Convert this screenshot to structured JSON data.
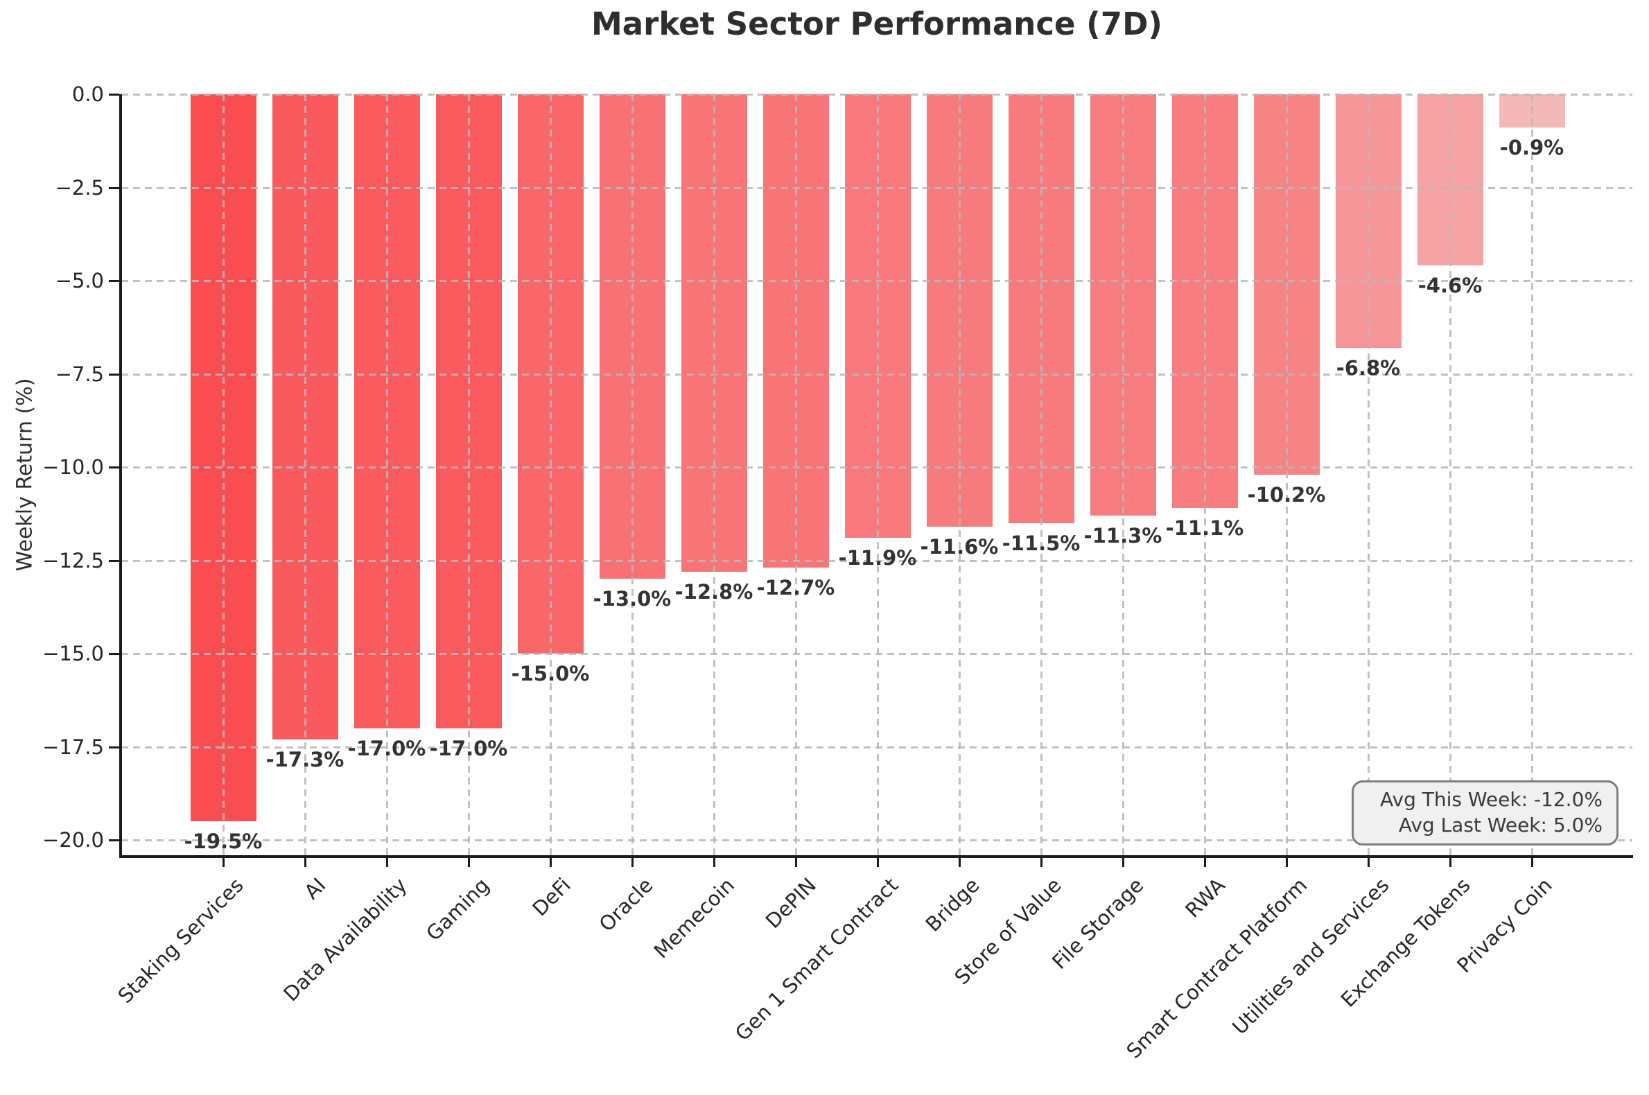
{
  "chart_data": {
    "type": "bar",
    "title": "Market Sector Performance (7D)",
    "xlabel": "",
    "ylabel": "Weekly Return (%)",
    "categories": [
      "Staking Services",
      "AI",
      "Data Availability",
      "Gaming",
      "DeFi",
      "Oracle",
      "Memecoin",
      "DePIN",
      "Gen 1 Smart Contract",
      "Bridge",
      "Store of Value",
      "File Storage",
      "RWA",
      "Smart Contract Platform",
      "Utilities and Services",
      "Exchange Tokens",
      "Privacy Coin"
    ],
    "values": [
      -19.5,
      -17.3,
      -17.0,
      -17.0,
      -15.0,
      -13.0,
      -12.8,
      -12.7,
      -11.9,
      -11.6,
      -11.5,
      -11.3,
      -11.1,
      -10.2,
      -6.8,
      -4.6,
      -0.9
    ],
    "bar_labels": [
      "-19.5%",
      "-17.3%",
      "-17.0%",
      "-17.0%",
      "-15.0%",
      "-13.0%",
      "-12.8%",
      "-12.7%",
      "-11.9%",
      "-11.6%",
      "-11.5%",
      "-11.3%",
      "-11.1%",
      "-10.2%",
      "-6.8%",
      "-4.6%",
      "-0.9%"
    ],
    "yticks": [
      0,
      -2.5,
      -5,
      -7.5,
      -10,
      -12.5,
      -15,
      -17.5,
      -20
    ],
    "ytick_labels": [
      "0.0",
      "−2.5",
      "−5.0",
      "−7.5",
      "−10.0",
      "−12.5",
      "−15.0",
      "−17.5",
      "−20.0"
    ],
    "ylim": [
      -20.4,
      0
    ],
    "grid": true,
    "grid_style": "dashed",
    "legend": "none",
    "annotation": {
      "line1": "Avg This Week: -12.0%",
      "line2": "Avg Last Week: 5.0%"
    },
    "colors": {
      "bar_most_negative": "#fa4d51",
      "bar_least_negative": "#f4b8b9",
      "grid": "#b8b8b8",
      "spine": "#1b1b1b",
      "text": "#2e2e2e",
      "value_label": "#333333",
      "annotation_bg": "#f0f0f0",
      "annotation_border": "#7e7e7e"
    }
  }
}
